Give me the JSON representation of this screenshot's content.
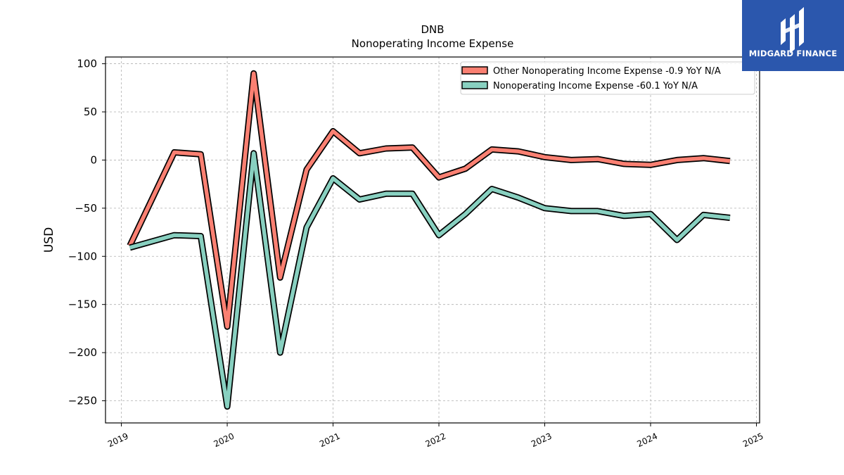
{
  "brand": {
    "name": "MIDGARD FINANCE",
    "color": "#2b57ad"
  },
  "chart_data": {
    "type": "line",
    "title": "DNB",
    "subtitle": "Nonoperating Income Expense",
    "xlabel": "",
    "ylabel": "USD",
    "xlim": [
      2018.85,
      2025.03
    ],
    "ylim": [
      -273,
      107
    ],
    "x_ticks": [
      "2019",
      "2020",
      "2021",
      "2022",
      "2023",
      "2024",
      "2025"
    ],
    "y_ticks": [
      100,
      50,
      0,
      -50,
      -100,
      -150,
      -200,
      -250
    ],
    "grid": true,
    "legend_position": "top-right",
    "series": [
      {
        "name": "Other Nonoperating Income Expense  -0.9 YoY N/A",
        "color": "#fa8072",
        "x": [
          2019.08,
          2019.5,
          2019.75,
          2020.0,
          2020.25,
          2020.5,
          2020.75,
          2021.0,
          2021.25,
          2021.5,
          2021.75,
          2022.0,
          2022.25,
          2022.5,
          2022.75,
          2023.0,
          2023.25,
          2023.5,
          2023.75,
          2024.0,
          2024.25,
          2024.5,
          2024.75
        ],
        "values": [
          -89,
          8,
          6,
          -173,
          90,
          -122,
          -10,
          30,
          7,
          12,
          13,
          -18,
          -9,
          11,
          9,
          3,
          0,
          1,
          -4,
          -5,
          0,
          2,
          -1
        ]
      },
      {
        "name": "Nonoperating Income Expense  -60.1 YoY N/A",
        "color": "#88d0c0",
        "x": [
          2019.08,
          2019.5,
          2019.75,
          2020.0,
          2020.25,
          2020.5,
          2020.75,
          2021.0,
          2021.25,
          2021.5,
          2021.75,
          2022.0,
          2022.25,
          2022.5,
          2022.75,
          2023.0,
          2023.25,
          2023.5,
          2023.75,
          2024.0,
          2024.25,
          2024.5,
          2024.75
        ],
        "values": [
          -91,
          -78,
          -79,
          -256,
          7,
          -200,
          -70,
          -19,
          -41,
          -35,
          -35,
          -78,
          -56,
          -30,
          -39,
          -50,
          -53,
          -53,
          -58,
          -56,
          -83,
          -57,
          -60
        ]
      }
    ]
  }
}
